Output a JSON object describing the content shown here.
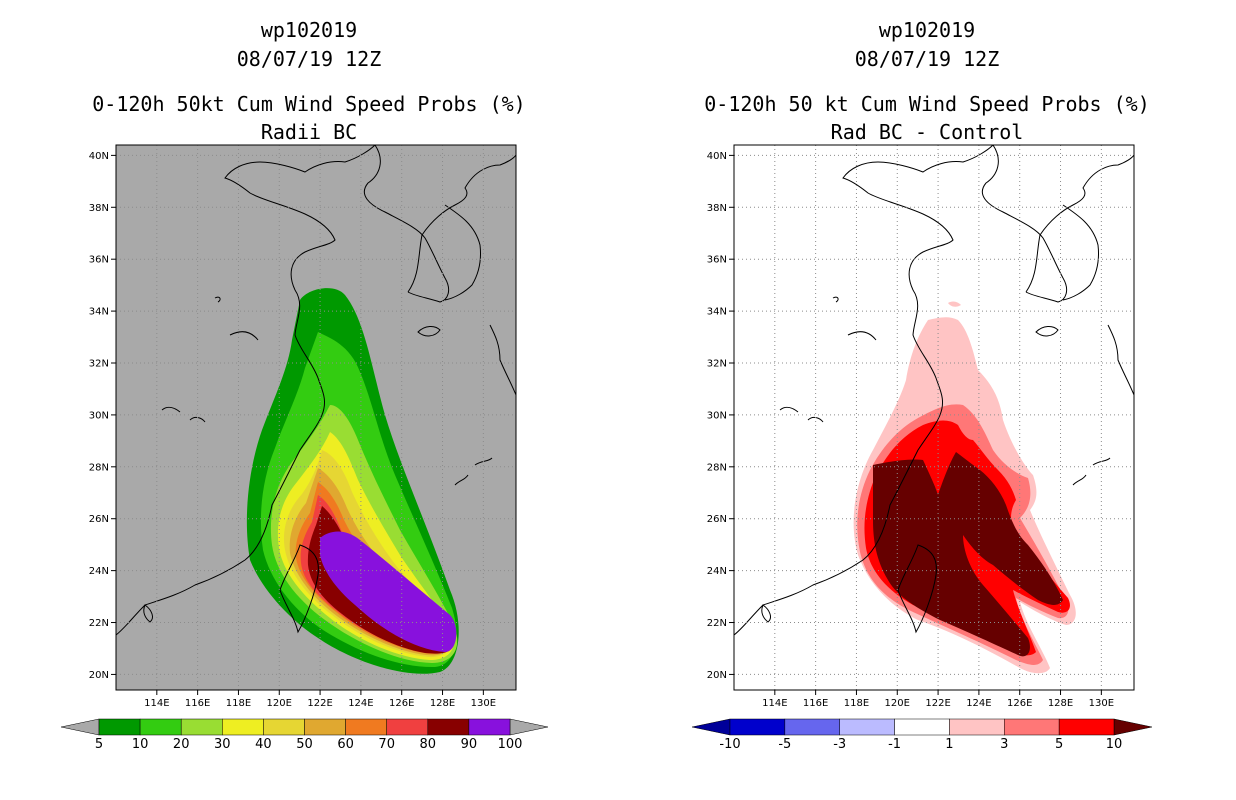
{
  "panels": [
    {
      "storm_id": "wp102019",
      "datetime": "08/07/19 12Z",
      "title": "0-120h 50kt Cum Wind Speed Probs (%)",
      "subtitle": "Radii BC",
      "background": "#a9a9a9",
      "lat_labels": [
        "20N",
        "22N",
        "24N",
        "26N",
        "28N",
        "30N",
        "32N",
        "34N",
        "36N",
        "38N",
        "40N"
      ],
      "lon_labels": [
        "114E",
        "116E",
        "118E",
        "120E",
        "122E",
        "124E",
        "126E",
        "128E",
        "130E"
      ],
      "colorbar": {
        "labels": [
          "5",
          "10",
          "20",
          "30",
          "40",
          "50",
          "60",
          "70",
          "80",
          "90",
          "100"
        ],
        "colors": [
          "#009900",
          "#33cc11",
          "#99dd33",
          "#eeee22",
          "#e6d633",
          "#e0a830",
          "#f07a20",
          "#f04040",
          "#880000",
          "#8811dd"
        ],
        "under_color": "#a9a9a9",
        "over_color": "#a9a9a9"
      }
    },
    {
      "storm_id": "wp102019",
      "datetime": "08/07/19 12Z",
      "title": "0-120h 50 kt Cum Wind Speed Probs (%)",
      "subtitle": "Rad BC - Control",
      "background": "#ffffff",
      "lat_labels": [
        "20N",
        "22N",
        "24N",
        "26N",
        "28N",
        "30N",
        "32N",
        "34N",
        "36N",
        "38N",
        "40N"
      ],
      "lon_labels": [
        "114E",
        "116E",
        "118E",
        "120E",
        "122E",
        "124E",
        "126E",
        "128E",
        "130E"
      ],
      "colorbar": {
        "labels": [
          "-10",
          "-5",
          "-3",
          "-1",
          "1",
          "3",
          "5",
          "10"
        ],
        "colors": [
          "#0000cc",
          "#6666ee",
          "#bbbbff",
          "#ffffff",
          "#ffc4c4",
          "#ff7777",
          "#ff0000"
        ],
        "under_color": "#000099",
        "over_color": "#660000"
      }
    }
  ]
}
